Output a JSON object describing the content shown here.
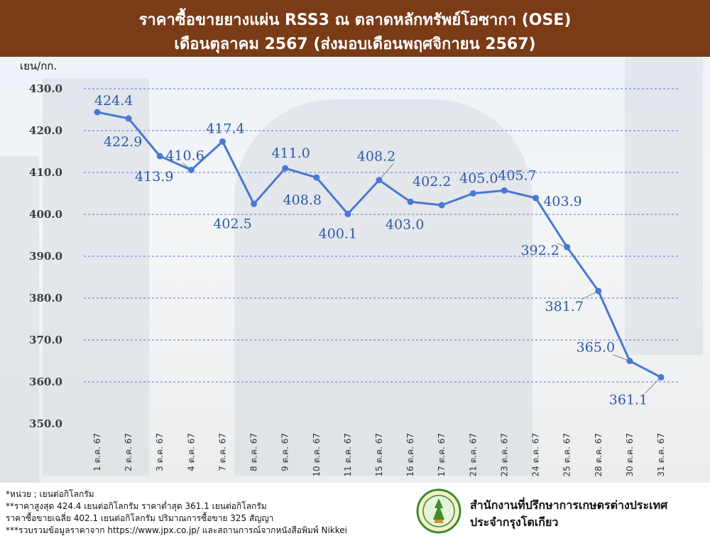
{
  "header": {
    "title_line1": "ราคาซื้อขายยางแผ่น RSS3 ณ ตลาดหลักทรัพย์โอซากา (OSE)",
    "title_line2": "เดือนตุลาคม 2567 (ส่งมอบเดือนพฤศจิกายน 2567)"
  },
  "colors": {
    "header_bg": "#7a3b17",
    "line": "#4a78d2",
    "label": "#2c59a8",
    "grid": "#5577cc"
  },
  "chart_data": {
    "type": "line",
    "title": "ราคาซื้อขายยางแผ่น RSS3 ณ ตลาดหลักทรัพย์โอซากา (OSE) เดือนตุลาคม 2567 (ส่งมอบเดือนพฤศจิกายน 2567)",
    "ylabel": "เยน/กก.",
    "xlabel": "",
    "ylim": [
      350,
      430
    ],
    "yticks": [
      "430.0",
      "420.0",
      "410.0",
      "400.0",
      "390.0",
      "380.0",
      "370.0",
      "360.0",
      "350.0"
    ],
    "grid": "horizontal dashed",
    "categories": [
      "1 ต.ค. 67",
      "2 ต.ค. 67",
      "3 ต.ค. 67",
      "4 ต.ค. 67",
      "7 ต.ค. 67",
      "8 ต.ค. 67",
      "9 ต.ค. 67",
      "10 ต.ค. 67",
      "11 ต.ค. 67",
      "15 ต.ค. 67",
      "16 ต.ค. 67",
      "17 ต.ค. 67",
      "21 ต.ค. 67",
      "23 ต.ค. 67",
      "24 ต.ค. 67",
      "25 ต.ค. 67",
      "28 ต.ค. 67",
      "30 ต.ค. 67",
      "31 ต.ค. 67"
    ],
    "values": [
      424.4,
      422.9,
      413.9,
      410.6,
      417.4,
      402.5,
      411.0,
      408.8,
      400.1,
      408.2,
      403.0,
      402.2,
      405.0,
      405.7,
      403.9,
      392.2,
      381.7,
      365.0,
      361.1
    ],
    "data_labels": [
      "424.4",
      "422.9",
      "413.9",
      "410.6",
      "417.4",
      "402.5",
      "411.0",
      "408.8",
      "400.1",
      "408.2",
      "403.0",
      "402.2",
      "405.0",
      "405.7",
      "403.9",
      "392.2",
      "381.7",
      "365.0",
      "361.1"
    ]
  },
  "notes": {
    "unit": "*หน่วย ; เยนต่อกิโลกรัม",
    "highlow": "**ราคาสูงสุด 424.4 เยนต่อกิโลกรัม ราคาต่ำสุด 361.1 เยนต่อกิโลกรัม",
    "average": "ราคาซื้อขายเฉลี่ย 402.1 เยนต่อกิโลกรัม ปริมาณการซื้อขาย 325 สัญญา",
    "source": "***รวบรวมข้อมูลราคาจาก https://www.jpx.co.jp/ และสถานการณ์จากหนังสือพิมพ์ Nikkei"
  },
  "office": {
    "line1": "สำนักงานที่ปรึกษาการเกษตรต่างประเทศ",
    "line2": "ประจำกรุงโตเกียว"
  }
}
